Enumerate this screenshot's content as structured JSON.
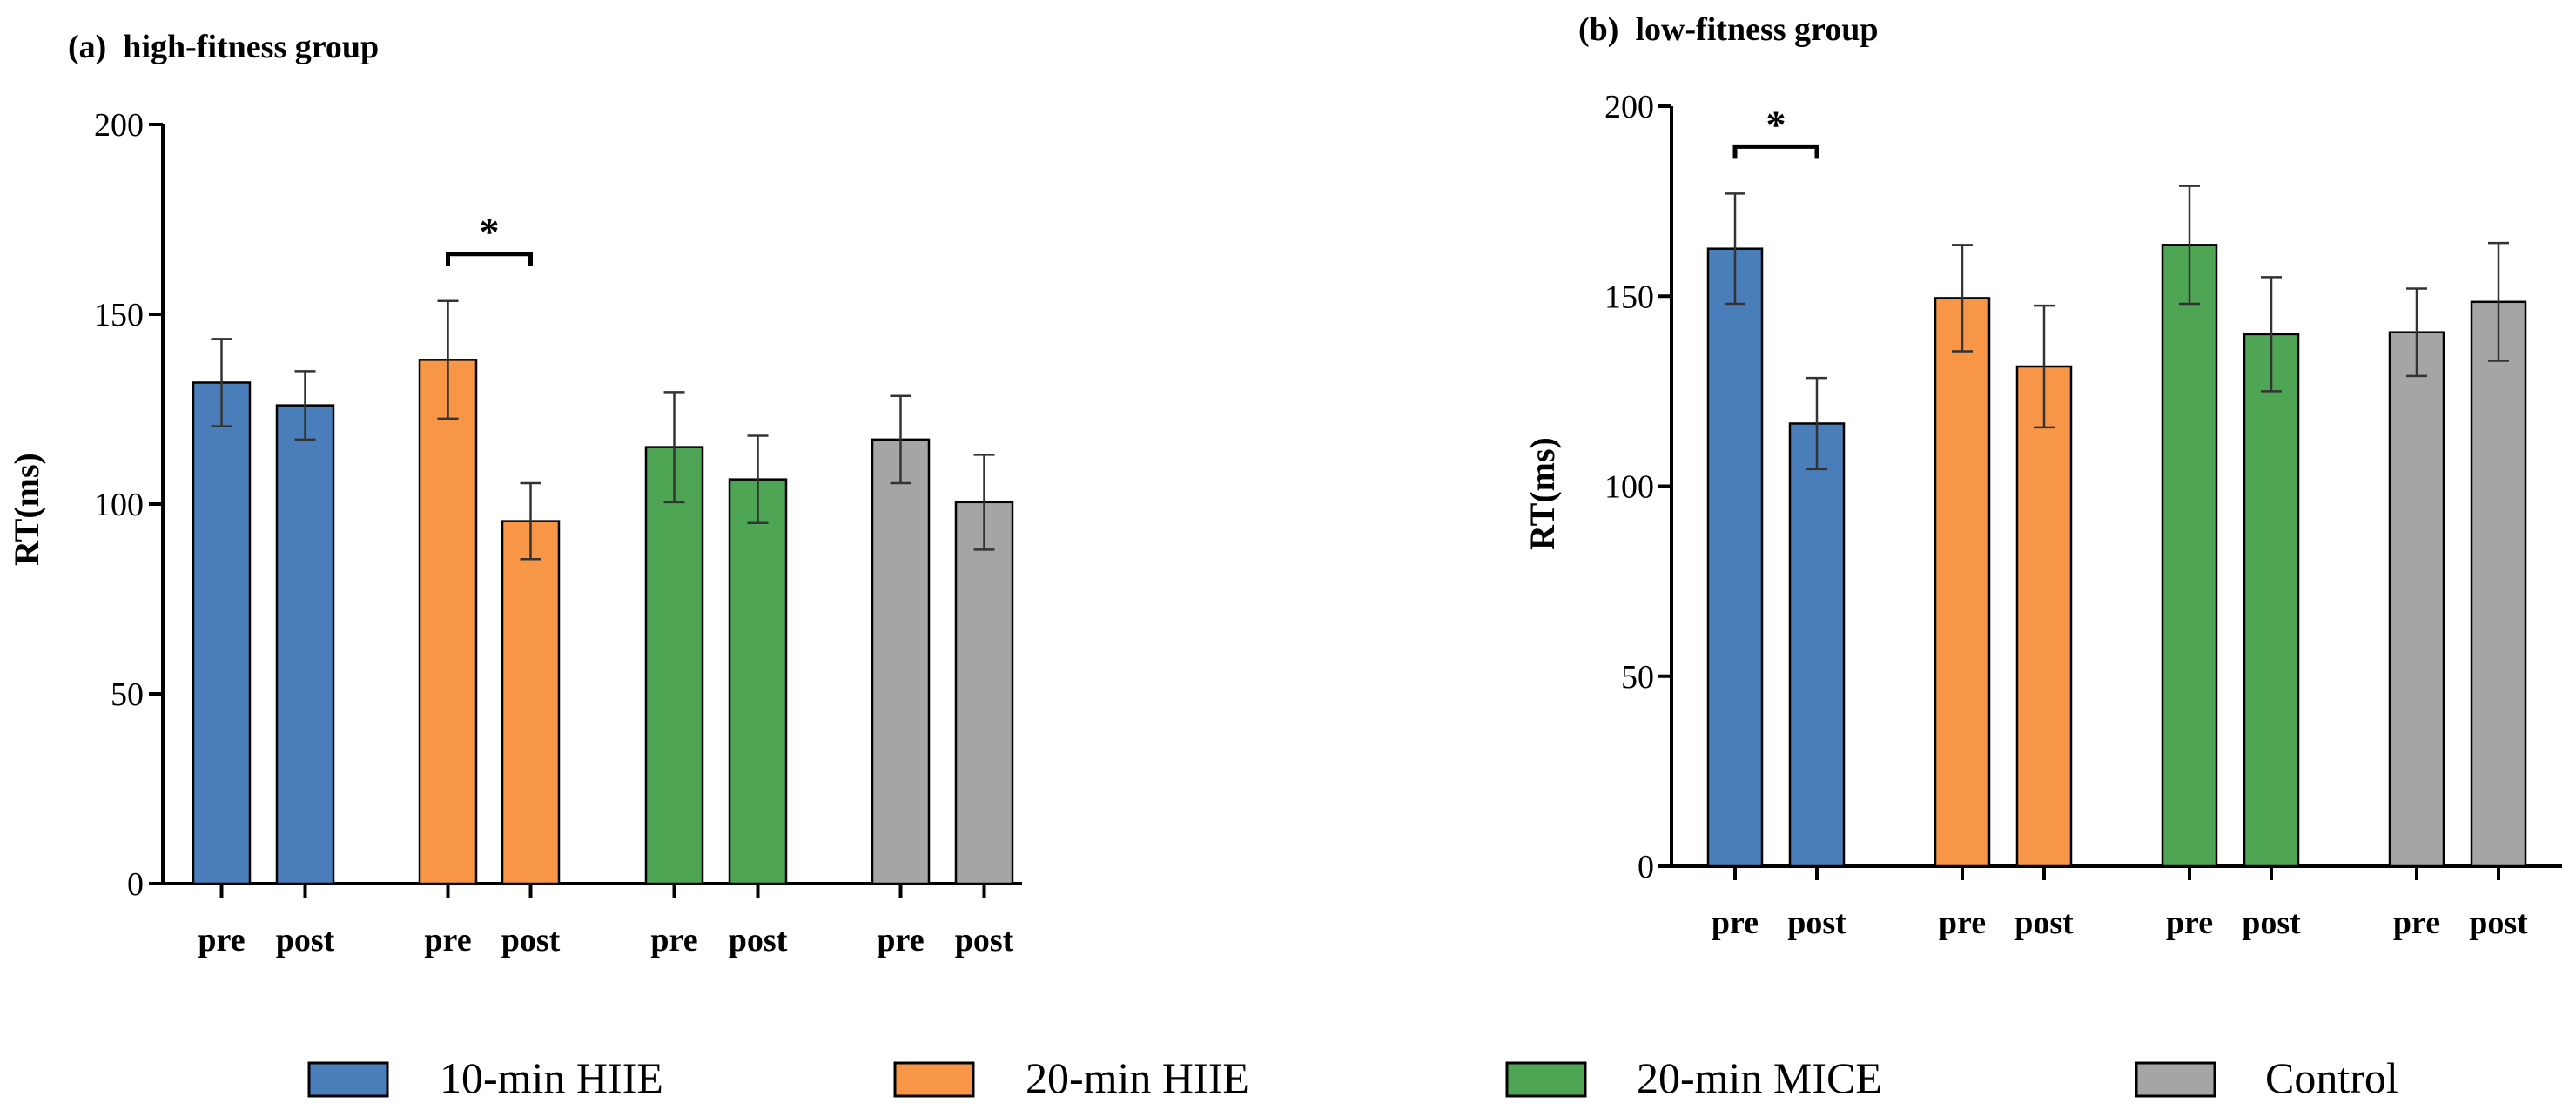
{
  "chart_data": [
    {
      "type": "bar",
      "title": "(a)  high-fitness group",
      "ylabel": "RT(ms)",
      "xlabel": "",
      "ylim": [
        0,
        200
      ],
      "yticks": [
        0,
        50,
        100,
        150,
        200
      ],
      "groups": [
        "10-min HIIE",
        "20-min HIIE",
        "20-min MICE",
        "Control"
      ],
      "categories": [
        "pre",
        "post"
      ],
      "series": [
        {
          "name": "10-min HIIE",
          "values": [
            132,
            126
          ],
          "errors": [
            11.5,
            9
          ]
        },
        {
          "name": "20-min HIIE",
          "values": [
            138,
            95.5
          ],
          "errors": [
            15.5,
            10
          ]
        },
        {
          "name": "20-min MICE",
          "values": [
            115,
            106.5
          ],
          "errors": [
            14.5,
            11.5
          ]
        },
        {
          "name": "Control",
          "values": [
            117,
            100.5
          ],
          "errors": [
            11.5,
            12.5
          ]
        }
      ],
      "significance": [
        {
          "group": "20-min HIIE",
          "between": [
            "pre",
            "post"
          ],
          "label": "*"
        }
      ]
    },
    {
      "type": "bar",
      "title": "(b)  low-fitness group",
      "ylabel": "RT(ms)",
      "xlabel": "",
      "ylim": [
        0,
        200
      ],
      "yticks": [
        0,
        50,
        100,
        150,
        200
      ],
      "groups": [
        "10-min HIIE",
        "20-min HIIE",
        "20-min MICE",
        "Control"
      ],
      "categories": [
        "pre",
        "post"
      ],
      "series": [
        {
          "name": "10-min HIIE",
          "values": [
            162.5,
            116.5
          ],
          "errors": [
            14.5,
            12
          ]
        },
        {
          "name": "20-min HIIE",
          "values": [
            149.5,
            131.5
          ],
          "errors": [
            14,
            16
          ]
        },
        {
          "name": "20-min MICE",
          "values": [
            163.5,
            140
          ],
          "errors": [
            15.5,
            15
          ]
        },
        {
          "name": "Control",
          "values": [
            140.5,
            148.5
          ],
          "errors": [
            11.5,
            15.5
          ]
        }
      ],
      "significance": [
        {
          "group": "10-min HIIE",
          "between": [
            "pre",
            "post"
          ],
          "label": "*"
        }
      ]
    }
  ],
  "legend": {
    "placement": "bottom",
    "items": [
      {
        "label": "10-min HIIE",
        "color": "#4a7ebb"
      },
      {
        "label": "20-min HIIE",
        "color": "#f79646"
      },
      {
        "label": "20-min MICE",
        "color": "#4ea553"
      },
      {
        "label": "Control",
        "color": "#a5a5a5"
      }
    ]
  }
}
